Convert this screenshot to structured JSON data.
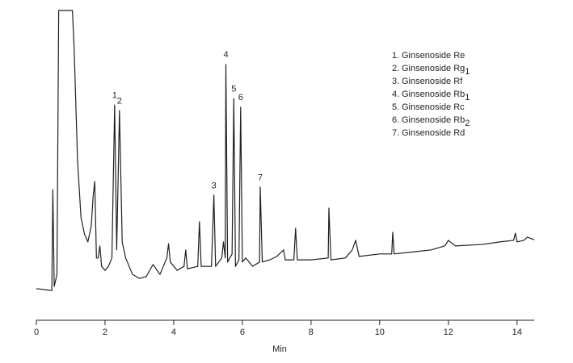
{
  "chart_data": {
    "type": "line",
    "color": "#231f20",
    "x_label": "Min",
    "xlim": [
      0,
      14.5
    ],
    "xticks": [
      0,
      2,
      4,
      6,
      8,
      10,
      12,
      14
    ],
    "ylim": [
      0,
      100
    ],
    "x": [
      0,
      0.45,
      0.48,
      0.52,
      0.6,
      0.65,
      1.05,
      1.1,
      1.2,
      1.3,
      1.4,
      1.5,
      1.6,
      1.65,
      1.7,
      1.75,
      1.8,
      1.85,
      1.9,
      2.0,
      2.1,
      2.2,
      2.28,
      2.34,
      2.42,
      2.5,
      2.6,
      2.8,
      3.0,
      3.2,
      3.4,
      3.6,
      3.8,
      3.85,
      3.9,
      4.1,
      4.3,
      4.35,
      4.4,
      4.7,
      4.75,
      4.8,
      5.1,
      5.17,
      5.22,
      5.4,
      5.45,
      5.5,
      5.52,
      5.57,
      5.7,
      5.75,
      5.8,
      5.9,
      5.95,
      6.0,
      6.1,
      6.3,
      6.5,
      6.52,
      6.58,
      6.8,
      7.0,
      7.2,
      7.25,
      7.5,
      7.55,
      7.6,
      8.0,
      8.5,
      8.52,
      8.58,
      9.0,
      9.2,
      9.3,
      9.4,
      10.0,
      10.35,
      10.38,
      10.42,
      11.0,
      11.5,
      11.9,
      12.0,
      12.2,
      13.0,
      13.5,
      13.9,
      13.95,
      14.0,
      14.2,
      14.3,
      14.5
    ],
    "values": [
      10.2,
      9.6,
      42.2,
      10.9,
      14.8,
      100,
      100,
      87.8,
      51.3,
      33.1,
      27.9,
      25.3,
      30.5,
      39.6,
      44.8,
      20.1,
      20.1,
      24.0,
      17.4,
      16.1,
      17.4,
      20.1,
      69.5,
      22.7,
      67.7,
      25.3,
      20.1,
      14.8,
      13.5,
      14.1,
      18.0,
      14.8,
      20.1,
      24.7,
      18.8,
      16.1,
      17.4,
      22.7,
      16.6,
      17.4,
      31.8,
      17.4,
      17.4,
      40.4,
      17.4,
      20.1,
      25.3,
      20.1,
      82.6,
      18.8,
      21.4,
      71.6,
      17.4,
      19.5,
      68.8,
      18.8,
      20.1,
      17.4,
      18.8,
      43.0,
      18.8,
      19.5,
      20.6,
      22.7,
      19.5,
      19.5,
      29.7,
      19.5,
      19.5,
      20.1,
      36.2,
      19.5,
      20.1,
      22.7,
      25.8,
      20.6,
      21.4,
      21.4,
      28.4,
      21.4,
      22.1,
      22.7,
      24.0,
      25.8,
      24.0,
      24.5,
      25.3,
      25.8,
      28.1,
      25.3,
      25.8,
      26.8,
      26.0
    ],
    "annotations": [
      {
        "text": "1",
        "x": 2.28,
        "y": 72.5
      },
      {
        "text": "2",
        "x": 2.42,
        "y": 70.7
      },
      {
        "text": "3",
        "x": 5.17,
        "y": 43.4
      },
      {
        "text": "4",
        "x": 5.52,
        "y": 85.6
      },
      {
        "text": "5",
        "x": 5.75,
        "y": 74.6
      },
      {
        "text": "6",
        "x": 5.95,
        "y": 71.8
      },
      {
        "text": "7",
        "x": 6.52,
        "y": 46.0
      }
    ],
    "legend": [
      {
        "number": "1.",
        "name": "Ginsenoside Re"
      },
      {
        "number": "2.",
        "name": "Ginsenoside Rg",
        "sub": "1"
      },
      {
        "number": "3.",
        "name": "Ginsenoside Rf"
      },
      {
        "number": "4.",
        "name": "Ginsenoside Rb",
        "sub": "1"
      },
      {
        "number": "5.",
        "name": "Ginsenoside Rc"
      },
      {
        "number": "6.",
        "name": "Ginsenoside Rb",
        "sub": "2"
      },
      {
        "number": "7.",
        "name": "Ginsenoside Rd"
      }
    ]
  }
}
